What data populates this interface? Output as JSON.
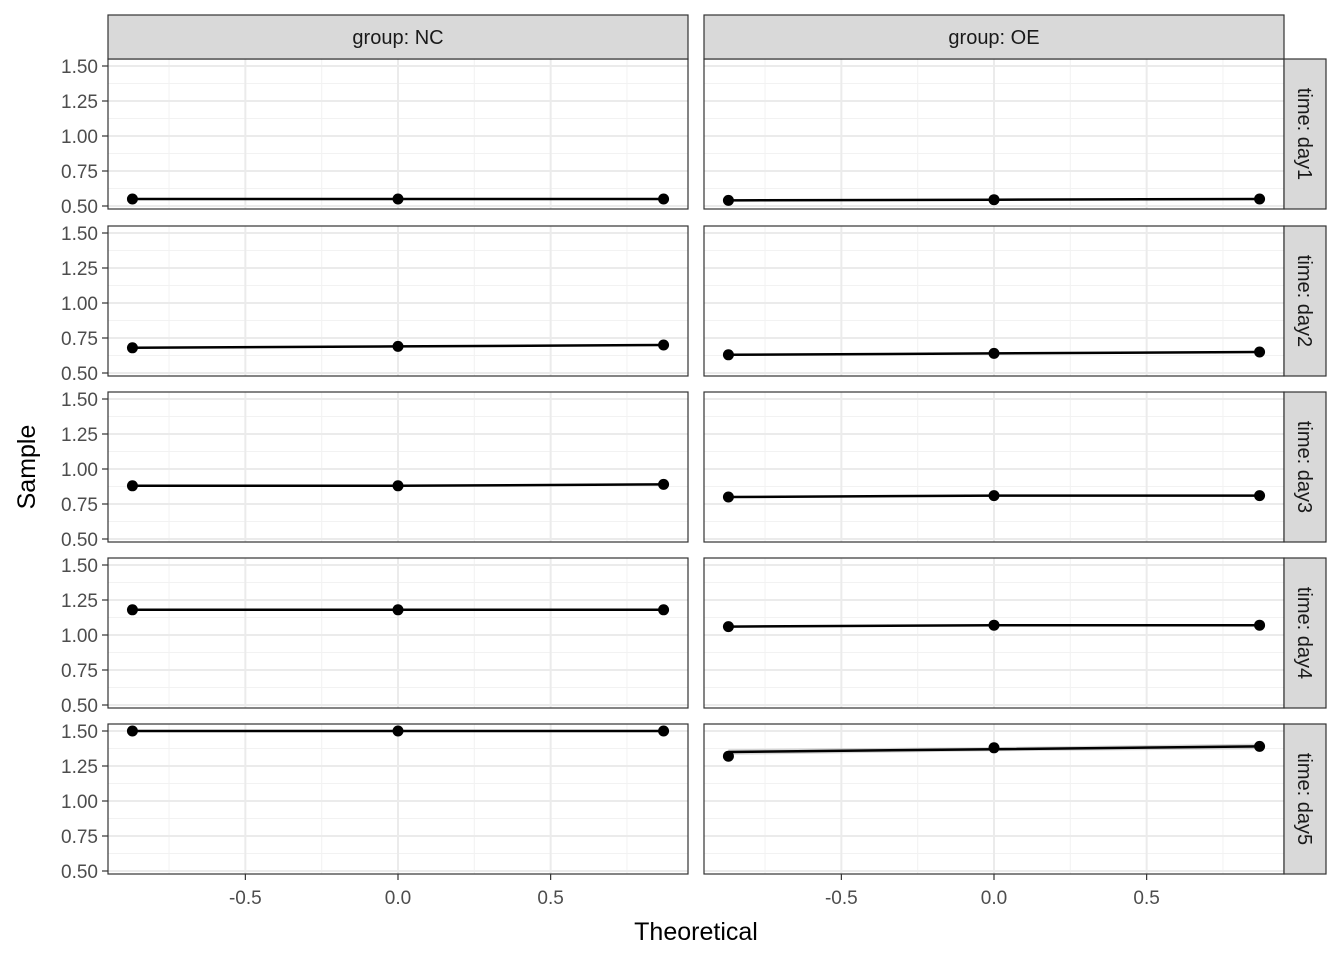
{
  "chart_data": {
    "type": "scatter",
    "xlabel": "Theoretical",
    "ylabel": "Sample",
    "xlim": [
      -0.95,
      0.95
    ],
    "ylim": [
      0.5,
      1.5
    ],
    "x_ticks": [
      -0.5,
      0.0,
      0.5
    ],
    "x_tick_labels": [
      "-0.5",
      "0.0",
      "0.5"
    ],
    "y_ticks": [
      0.5,
      0.75,
      1.0,
      1.25,
      1.5
    ],
    "y_tick_labels": [
      "0.50",
      "0.75",
      "1.00",
      "1.25",
      "1.50"
    ],
    "grid": true,
    "facet_cols": [
      {
        "key": "NC",
        "label": "group: NC"
      },
      {
        "key": "OE",
        "label": "group: OE"
      }
    ],
    "facet_rows": [
      {
        "key": "day1",
        "label": "time: day1"
      },
      {
        "key": "day2",
        "label": "time: day2"
      },
      {
        "key": "day3",
        "label": "time: day3"
      },
      {
        "key": "day4",
        "label": "time: day4"
      },
      {
        "key": "day5",
        "label": "time: day5"
      }
    ],
    "panels": [
      {
        "row": "day1",
        "col": "NC",
        "x": [
          -0.87,
          0.0,
          0.87
        ],
        "y": [
          0.55,
          0.55,
          0.55
        ],
        "line_y": [
          0.55,
          0.55,
          0.55
        ],
        "band": [
          0.0,
          0.0,
          0.0
        ]
      },
      {
        "row": "day1",
        "col": "OE",
        "x": [
          -0.87,
          0.0,
          0.87
        ],
        "y": [
          0.54,
          0.545,
          0.55
        ],
        "line_y": [
          0.54,
          0.545,
          0.55
        ],
        "band": [
          0.0,
          0.0,
          0.0
        ]
      },
      {
        "row": "day2",
        "col": "NC",
        "x": [
          -0.87,
          0.0,
          0.87
        ],
        "y": [
          0.68,
          0.69,
          0.7
        ],
        "line_y": [
          0.68,
          0.69,
          0.7
        ],
        "band": [
          0.0,
          0.0,
          0.0
        ]
      },
      {
        "row": "day2",
        "col": "OE",
        "x": [
          -0.87,
          0.0,
          0.87
        ],
        "y": [
          0.63,
          0.64,
          0.65
        ],
        "line_y": [
          0.63,
          0.64,
          0.65
        ],
        "band": [
          0.0,
          0.0,
          0.0
        ]
      },
      {
        "row": "day3",
        "col": "NC",
        "x": [
          -0.87,
          0.0,
          0.87
        ],
        "y": [
          0.88,
          0.88,
          0.89
        ],
        "line_y": [
          0.88,
          0.88,
          0.89
        ],
        "band": [
          0.0,
          0.0,
          0.0
        ]
      },
      {
        "row": "day3",
        "col": "OE",
        "x": [
          -0.87,
          0.0,
          0.87
        ],
        "y": [
          0.8,
          0.81,
          0.81
        ],
        "line_y": [
          0.8,
          0.81,
          0.81
        ],
        "band": [
          0.0,
          0.0,
          0.0
        ]
      },
      {
        "row": "day4",
        "col": "NC",
        "x": [
          -0.87,
          0.0,
          0.87
        ],
        "y": [
          1.18,
          1.18,
          1.18
        ],
        "line_y": [
          1.18,
          1.18,
          1.18
        ],
        "band": [
          0.0,
          0.0,
          0.0
        ]
      },
      {
        "row": "day4",
        "col": "OE",
        "x": [
          -0.87,
          0.0,
          0.87
        ],
        "y": [
          1.06,
          1.07,
          1.07
        ],
        "line_y": [
          1.06,
          1.07,
          1.07
        ],
        "band": [
          0.0,
          0.0,
          0.0
        ]
      },
      {
        "row": "day5",
        "col": "NC",
        "x": [
          -0.87,
          0.0,
          0.87
        ],
        "y": [
          1.5,
          1.5,
          1.5
        ],
        "line_y": [
          1.5,
          1.5,
          1.5
        ],
        "band": [
          0.0,
          0.0,
          0.0
        ]
      },
      {
        "row": "day5",
        "col": "OE",
        "x": [
          -0.87,
          0.0,
          0.87
        ],
        "y": [
          1.32,
          1.38,
          1.39
        ],
        "line_y": [
          1.35,
          1.37,
          1.39
        ],
        "band": [
          0.02,
          0.015,
          0.02
        ]
      }
    ]
  }
}
